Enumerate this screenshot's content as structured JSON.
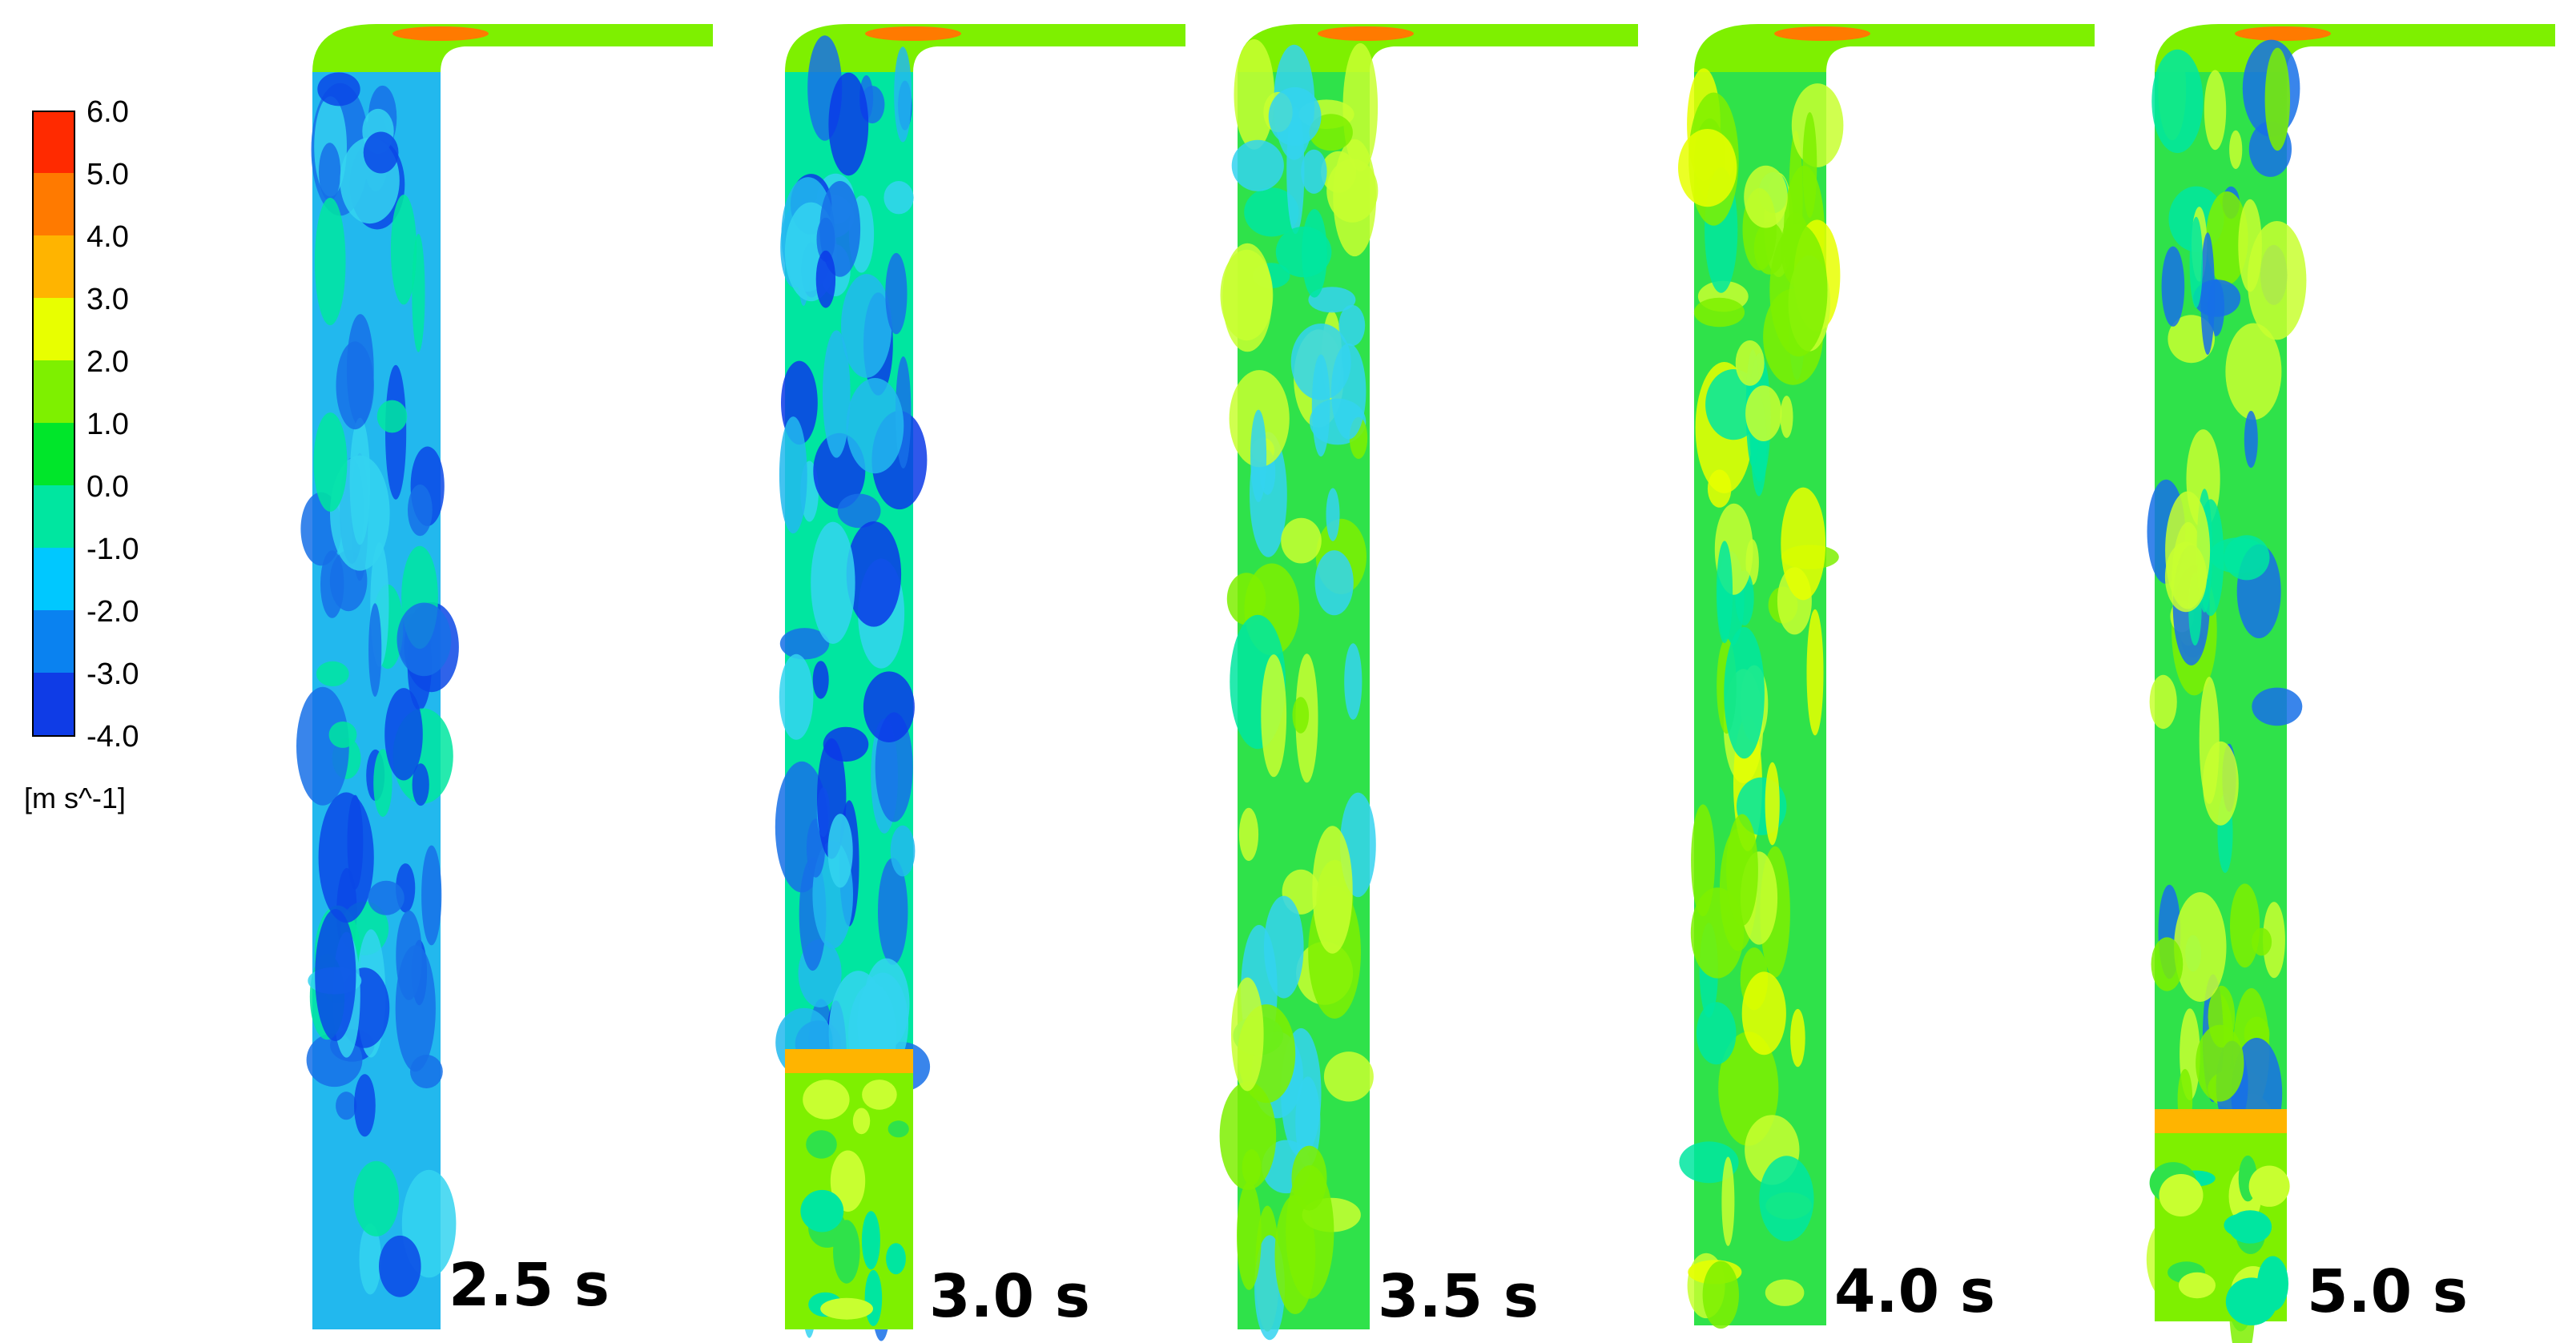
{
  "colorbar": {
    "ticks": [
      "6.0",
      "5.0",
      "4.0",
      "3.0",
      "2.0",
      "1.0",
      "0.0",
      "-1.0",
      "-2.0",
      "-3.0",
      "-4.0"
    ],
    "unit": "[m s^-1]",
    "colors_top_to_bottom": [
      "#ff2a00",
      "#ff7a00",
      "#ffb400",
      "#e8ff00",
      "#7ef000",
      "#00e62a",
      "#00e6a0",
      "#00c8ff",
      "#0a82f0",
      "#0f3ce6"
    ]
  },
  "panels": [
    {
      "time_label": "2.5 s",
      "scheme": [
        "#22b8ee",
        "#1670e8",
        "#0a48e6",
        "#34d4f0",
        "#00e6a0"
      ],
      "bottom_band": null
    },
    {
      "time_label": "3.0 s",
      "scheme": [
        "#00e6a0",
        "#34d4f0",
        "#1670e8",
        "#0a3ae8",
        "#22b8ee"
      ],
      "bottom_band": "#ffb400"
    },
    {
      "time_label": "3.5 s",
      "scheme": [
        "#2fe24a",
        "#7ef000",
        "#00e6a0",
        "#c8ff30",
        "#34d4f0"
      ],
      "bottom_band": null
    },
    {
      "time_label": "4.0 s",
      "scheme": [
        "#2fe24a",
        "#c8ff30",
        "#7ef000",
        "#00e6a0",
        "#e8ff00"
      ],
      "bottom_band": null
    },
    {
      "time_label": "5.0 s",
      "scheme": [
        "#2fe24a",
        "#c8ff30",
        "#7ef000",
        "#00e6a0",
        "#1670e8"
      ],
      "bottom_band": "#ffb400"
    }
  ]
}
